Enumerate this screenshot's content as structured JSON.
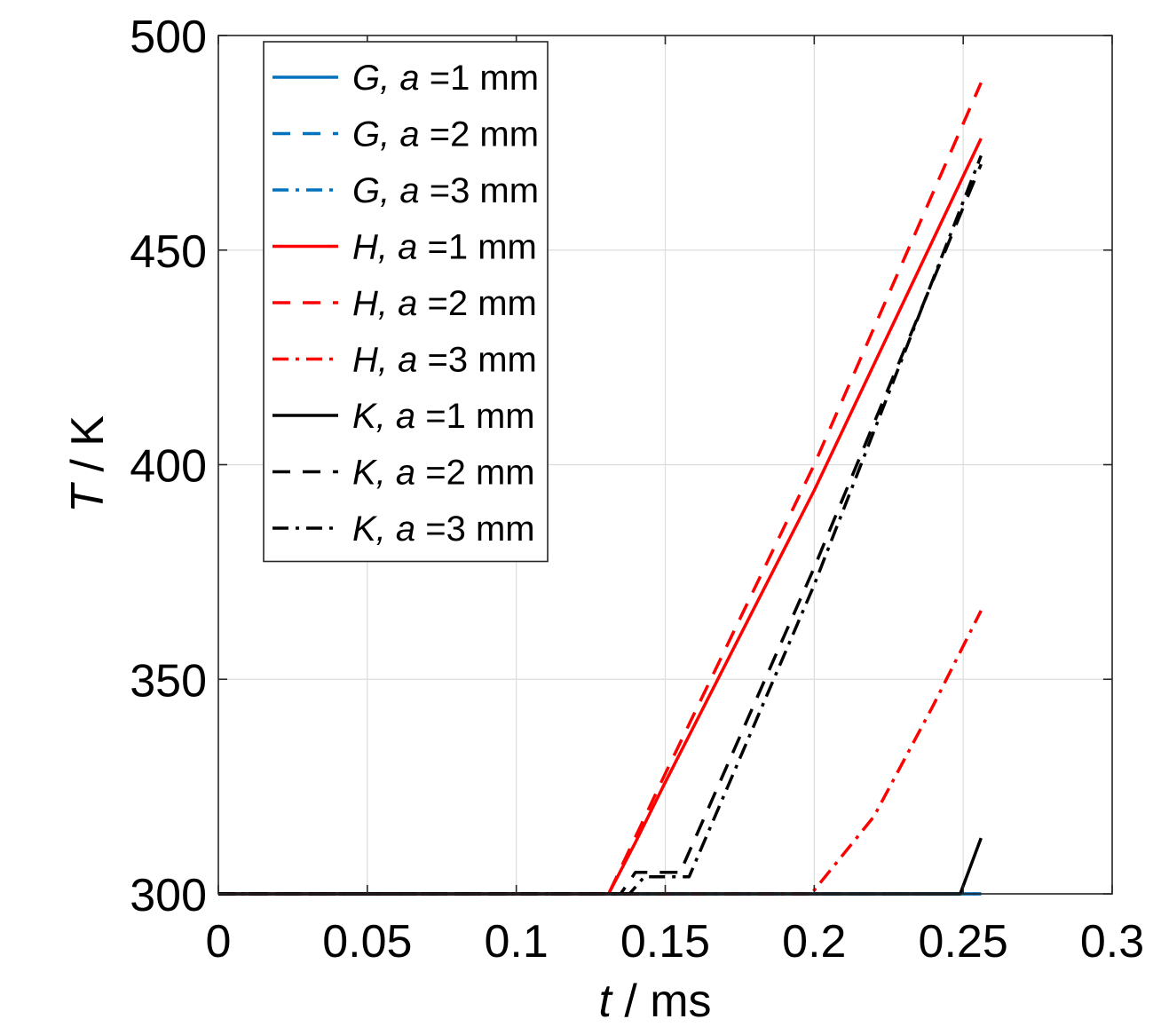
{
  "chart_data": {
    "type": "line",
    "title": "",
    "xlabel": {
      "var": "t",
      "unit": " / ms"
    },
    "ylabel": {
      "var": "T",
      "unit": " / K"
    },
    "xlim": [
      0,
      0.3
    ],
    "ylim": [
      300,
      500
    ],
    "xticks": [
      0,
      0.05,
      0.1,
      0.15,
      0.2,
      0.25,
      0.3
    ],
    "xtick_labels": [
      "0",
      "0.05",
      "0.1",
      "0.15",
      "0.2",
      "0.25",
      "0.3"
    ],
    "yticks": [
      300,
      350,
      400,
      450,
      500
    ],
    "ytick_labels": [
      "300",
      "350",
      "400",
      "450",
      "500"
    ],
    "grid": true,
    "legend_position": "top-left",
    "colors": {
      "G": "#0072BD",
      "H": "#FF0000",
      "K": "#000000"
    },
    "series": [
      {
        "name": "G, a =1 mm",
        "var": "G",
        "rest": " =1 mm",
        "color": "#0072BD",
        "dash": "solid",
        "x": [
          0,
          0.256
        ],
        "y": [
          300,
          300
        ]
      },
      {
        "name": "G, a =2 mm",
        "var": "G",
        "rest": " =2 mm",
        "color": "#0072BD",
        "dash": "dash",
        "x": [
          0,
          0.256
        ],
        "y": [
          300,
          300
        ]
      },
      {
        "name": "G, a =3 mm",
        "var": "G",
        "rest": " =3 mm",
        "color": "#0072BD",
        "dash": "dashdot",
        "x": [
          0,
          0.256
        ],
        "y": [
          300,
          300
        ]
      },
      {
        "name": "H, a =1 mm",
        "var": "H",
        "rest": " =1 mm",
        "color": "#FF0000",
        "dash": "solid",
        "x": [
          0,
          0.131,
          0.14,
          0.15,
          0.2,
          0.256
        ],
        "y": [
          300,
          300,
          312,
          326,
          394,
          476
        ]
      },
      {
        "name": "H, a =2 mm",
        "var": "H",
        "rest": " =2 mm",
        "color": "#FF0000",
        "dash": "dash",
        "x": [
          0,
          0.131,
          0.15,
          0.2,
          0.256
        ],
        "y": [
          300,
          300,
          328,
          400,
          489
        ]
      },
      {
        "name": "H, a =3 mm",
        "var": "H",
        "rest": " =3 mm",
        "color": "#FF0000",
        "dash": "dashdot",
        "x": [
          0,
          0.199,
          0.22,
          0.24,
          0.256
        ],
        "y": [
          300,
          300,
          318,
          344,
          366
        ]
      },
      {
        "name": "K, a =1 mm",
        "var": "K",
        "rest": " =1 mm",
        "color": "#000000",
        "dash": "solid",
        "x": [
          0,
          0.249,
          0.256
        ],
        "y": [
          300,
          300,
          313
        ]
      },
      {
        "name": "K, a =2 mm",
        "var": "K",
        "rest": " =2 mm",
        "color": "#000000",
        "dash": "dash",
        "x": [
          0,
          0.135,
          0.14,
          0.155,
          0.2,
          0.256
        ],
        "y": [
          300,
          300,
          305,
          305,
          376,
          470
        ]
      },
      {
        "name": "K, a =3 mm",
        "var": "K",
        "rest": " =3 mm",
        "color": "#000000",
        "dash": "dashdot",
        "x": [
          0,
          0.138,
          0.143,
          0.158,
          0.2,
          0.256
        ],
        "y": [
          300,
          300,
          304,
          304,
          372,
          472
        ]
      }
    ]
  }
}
